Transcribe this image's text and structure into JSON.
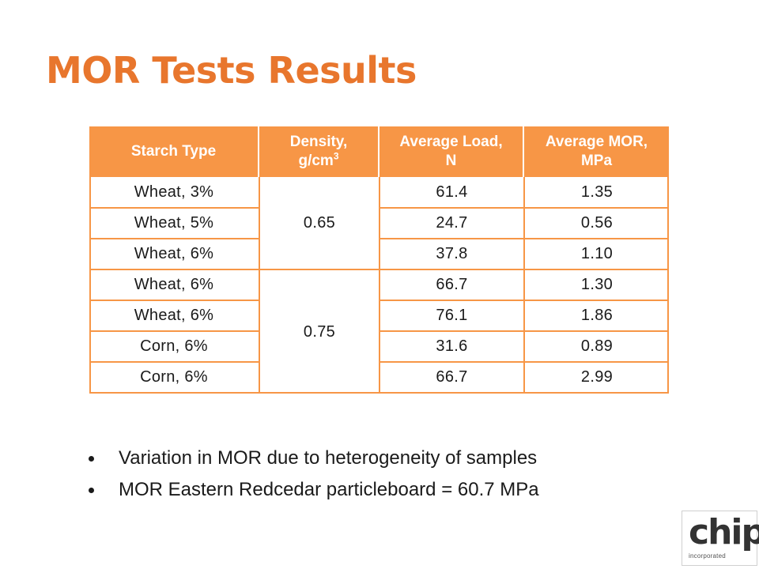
{
  "title": "MOR Tests Results",
  "table": {
    "headers": {
      "starch_type": "Starch Type",
      "density_line1": "Density,",
      "density_line2": "g/cm",
      "density_sup": "3",
      "load_line1": "Average Load,",
      "load_line2": "N",
      "mor_line1": "Average MOR,",
      "mor_line2": "MPa"
    },
    "densities": [
      "0.65",
      "0.75"
    ],
    "rows": [
      {
        "starch": "Wheat, 3%",
        "load": "61.4",
        "mor": "1.35"
      },
      {
        "starch": "Wheat, 5%",
        "load": "24.7",
        "mor": "0.56"
      },
      {
        "starch": "Wheat, 6%",
        "load": "37.8",
        "mor": "1.10"
      },
      {
        "starch": "Wheat, 6%",
        "load": "66.7",
        "mor": "1.30"
      },
      {
        "starch": "Wheat, 6%",
        "load": "76.1",
        "mor": "1.86"
      },
      {
        "starch": "Corn, 6%",
        "load": "31.6",
        "mor": "0.89"
      },
      {
        "starch": "Corn, 6%",
        "load": "66.7",
        "mor": "2.99"
      }
    ]
  },
  "bullets": [
    "Variation in MOR due to heterogeneity of samples",
    "MOR Eastern Redcedar particleboard = 60.7 MPa"
  ],
  "logo": {
    "word": "chip",
    "sub": "incorporated"
  },
  "colors": {
    "accent": "#f79646",
    "title": "#e8762d"
  }
}
